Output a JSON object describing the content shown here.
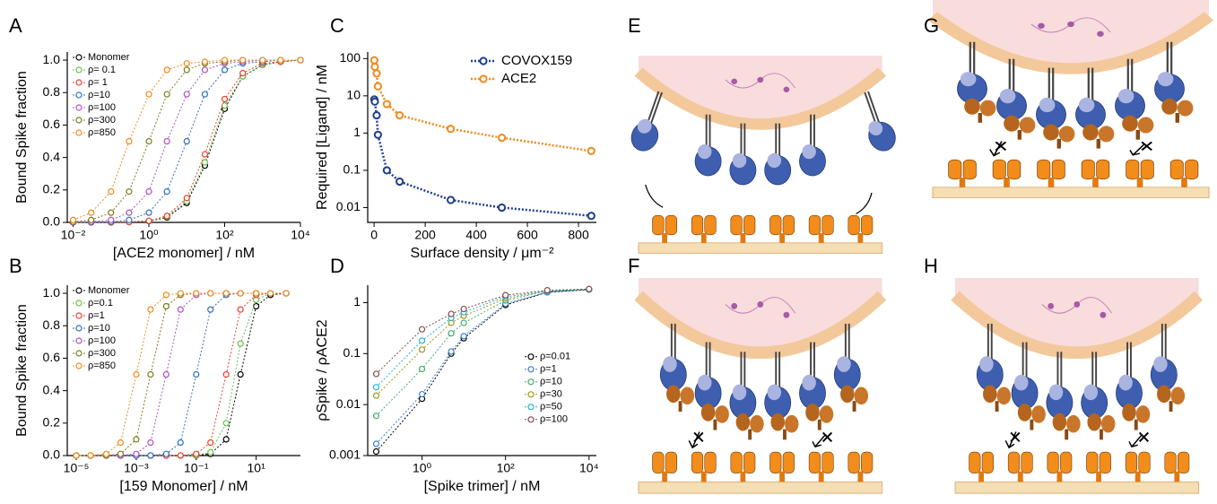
{
  "chart_data": [
    {
      "type": "line",
      "xscale": "log",
      "yscale": "linear",
      "legend": "upper left",
      "y_label": "Bound Spike fraction",
      "x_label": "[ACE2 monomer] / nM",
      "x": [
        0.01,
        0.03,
        0.1,
        0.3,
        1,
        3,
        10,
        30,
        100,
        300,
        1000,
        3000,
        10000
      ],
      "xlim": [
        0.007,
        10000
      ],
      "xticks": [
        {
          "value": 0.01,
          "label": "10⁻²"
        },
        {
          "value": 1,
          "label": "10⁰"
        },
        {
          "value": 100,
          "label": "10²"
        },
        {
          "value": 10000,
          "label": "10⁴"
        }
      ],
      "ylim": [
        0,
        1.05
      ],
      "yticks": [
        {
          "value": 0,
          "label": "0.0"
        },
        0.2,
        0.4,
        0.6,
        0.8,
        {
          "value": 1,
          "label": "1.0"
        }
      ],
      "series": [
        {
          "name": "Monomer",
          "color": "#000000",
          "values": [
            0,
            0,
            0,
            0.002,
            0.008,
            0.03,
            0.12,
            0.35,
            0.7,
            0.9,
            0.97,
            0.99,
            1.0
          ]
        },
        {
          "name": "ρ= 0.1",
          "color": "#6abf4b",
          "values": [
            0,
            0,
            0,
            0.002,
            0.009,
            0.035,
            0.13,
            0.37,
            0.72,
            0.9,
            0.97,
            0.99,
            1.0
          ]
        },
        {
          "name": "ρ= 1",
          "color": "#e8402a",
          "values": [
            0,
            0,
            0,
            0.003,
            0.01,
            0.04,
            0.15,
            0.42,
            0.76,
            0.92,
            0.98,
            0.99,
            1.0
          ]
        },
        {
          "name": "ρ=10",
          "color": "#2e6fc0",
          "values": [
            0,
            0.001,
            0.004,
            0.015,
            0.06,
            0.19,
            0.5,
            0.79,
            0.94,
            0.98,
            0.99,
            1.0,
            1.0
          ]
        },
        {
          "name": "ρ=100",
          "color": "#b04fc0",
          "values": [
            0.001,
            0.004,
            0.015,
            0.06,
            0.19,
            0.5,
            0.79,
            0.94,
            0.98,
            0.99,
            1.0,
            1.0,
            1.0
          ]
        },
        {
          "name": "ρ=300",
          "color": "#7a7a1f",
          "values": [
            0.004,
            0.015,
            0.06,
            0.19,
            0.5,
            0.79,
            0.94,
            0.98,
            0.99,
            1.0,
            1.0,
            1.0,
            1.0
          ]
        },
        {
          "name": "ρ=850",
          "color": "#f08a1c",
          "values": [
            0.015,
            0.06,
            0.19,
            0.5,
            0.79,
            0.94,
            0.98,
            0.99,
            1.0,
            1.0,
            1.0,
            1.0,
            1.0
          ]
        }
      ]
    },
    {
      "type": "line",
      "xscale": "log",
      "yscale": "linear",
      "legend": "upper left",
      "y_label": "Bound Spike fraction",
      "x_label": "[159 Monomer] / nM",
      "x": [
        1e-05,
        3e-05,
        0.0001,
        0.0003,
        0.001,
        0.003,
        0.01,
        0.03,
        0.1,
        0.3,
        1,
        3,
        10,
        30,
        100
      ],
      "xlim": [
        5e-06,
        300
      ],
      "xticks": [
        {
          "value": 1e-05,
          "label": "10⁻⁵"
        },
        {
          "value": 0.001,
          "label": "10⁻³"
        },
        {
          "value": 0.1,
          "label": "10⁻¹"
        },
        {
          "value": 10,
          "label": "10¹"
        }
      ],
      "ylim": [
        0,
        1.05
      ],
      "yticks": [
        {
          "value": 0,
          "label": "0.0"
        },
        0.2,
        0.4,
        0.6,
        0.8,
        {
          "value": 1,
          "label": "1.0"
        }
      ],
      "series": [
        {
          "name": "Monomer",
          "color": "#000000",
          "values": [
            0,
            0,
            0,
            0,
            0,
            0,
            0,
            0,
            0.001,
            0.01,
            0.1,
            0.5,
            0.92,
            0.99,
            1.0
          ]
        },
        {
          "name": "ρ=0.1",
          "color": "#6abf4b",
          "values": [
            0,
            0,
            0,
            0,
            0,
            0,
            0,
            0,
            0.002,
            0.02,
            0.2,
            0.69,
            0.96,
            1.0,
            1.0
          ]
        },
        {
          "name": "ρ=1",
          "color": "#e8402a",
          "values": [
            0,
            0,
            0,
            0,
            0,
            0,
            0,
            0.001,
            0.01,
            0.08,
            0.5,
            0.9,
            0.99,
            1.0,
            1.0
          ]
        },
        {
          "name": "ρ=10",
          "color": "#2e6fc0",
          "values": [
            0,
            0,
            0,
            0,
            0,
            0.001,
            0.01,
            0.08,
            0.5,
            0.9,
            0.99,
            1.0,
            1.0,
            1.0,
            1.0
          ]
        },
        {
          "name": "ρ=100",
          "color": "#b04fc0",
          "values": [
            0,
            0,
            0,
            0.001,
            0.01,
            0.08,
            0.5,
            0.9,
            0.99,
            1.0,
            1.0,
            1.0,
            1.0,
            1.0,
            1.0
          ]
        },
        {
          "name": "ρ=300",
          "color": "#7a7a1f",
          "values": [
            0,
            0,
            0.001,
            0.01,
            0.1,
            0.5,
            0.92,
            0.99,
            1.0,
            1.0,
            1.0,
            1.0,
            1.0,
            1.0,
            1.0
          ]
        },
        {
          "name": "ρ=850",
          "color": "#f08a1c",
          "values": [
            0,
            0.001,
            0.01,
            0.08,
            0.5,
            0.9,
            0.99,
            1.0,
            1.0,
            1.0,
            1.0,
            1.0,
            1.0,
            1.0,
            1.0
          ]
        }
      ]
    },
    {
      "type": "line",
      "xscale": "linear",
      "yscale": "log",
      "legend": "upper right",
      "y_label": "Required [Ligand] / nM",
      "x_label": "Surface density / μm⁻²",
      "x": [
        1,
        3,
        10,
        15,
        50,
        100,
        300,
        500,
        850
      ],
      "xlim": [
        -25,
        870
      ],
      "xticks": [
        0,
        200,
        400,
        600,
        800
      ],
      "ylim": [
        0.004,
        150
      ],
      "yticks": [
        0.01,
        0.1,
        1,
        10,
        100
      ],
      "series": [
        {
          "name": "COVOX159",
          "color": "#1f3f8f",
          "values": [
            8,
            7,
            3,
            0.9,
            0.1,
            0.05,
            0.016,
            0.01,
            0.006
          ]
        },
        {
          "name": "ACE2",
          "color": "#f08a1c",
          "values": [
            90,
            60,
            40,
            18,
            6,
            3,
            1.3,
            0.75,
            0.33
          ]
        }
      ]
    },
    {
      "type": "line",
      "xscale": "log",
      "yscale": "log",
      "legend": "center right",
      "y_label": "ρSpike / ρACE2",
      "x_label": "[Spike trimer] / nM",
      "x": [
        0.08,
        1,
        5,
        10,
        100,
        1000,
        10000
      ],
      "xlim": [
        0.05,
        15000
      ],
      "xticks": [
        {
          "value": 1,
          "label": "10⁰"
        },
        {
          "value": 100,
          "label": "10²"
        },
        {
          "value": 10000,
          "label": "10⁴"
        }
      ],
      "ylim": [
        0.001,
        2.2
      ],
      "yticks": [
        0.001,
        0.01,
        0.1,
        1
      ],
      "series": [
        {
          "name": "ρ=0.01",
          "color": "#000000",
          "values": [
            0.0012,
            0.013,
            0.1,
            0.2,
            0.9,
            1.6,
            1.8
          ]
        },
        {
          "name": "ρ=1",
          "color": "#3a7fd0",
          "values": [
            0.0017,
            0.016,
            0.11,
            0.22,
            0.95,
            1.6,
            1.8
          ]
        },
        {
          "name": "ρ=10",
          "color": "#3fae6a",
          "values": [
            0.006,
            0.05,
            0.25,
            0.4,
            1.1,
            1.7,
            1.8
          ]
        },
        {
          "name": "ρ=30",
          "color": "#a09a1c",
          "values": [
            0.015,
            0.12,
            0.4,
            0.55,
            1.2,
            1.7,
            1.8
          ]
        },
        {
          "name": "ρ=50",
          "color": "#22b3d4",
          "values": [
            0.022,
            0.18,
            0.5,
            0.65,
            1.3,
            1.7,
            1.8
          ]
        },
        {
          "name": "ρ=100",
          "color": "#8b4a4a",
          "values": [
            0.04,
            0.3,
            0.6,
            0.75,
            1.4,
            1.75,
            1.85
          ]
        }
      ]
    }
  ],
  "panel_labels": [
    "A",
    "B",
    "C",
    "D",
    "E",
    "F",
    "G",
    "H"
  ]
}
